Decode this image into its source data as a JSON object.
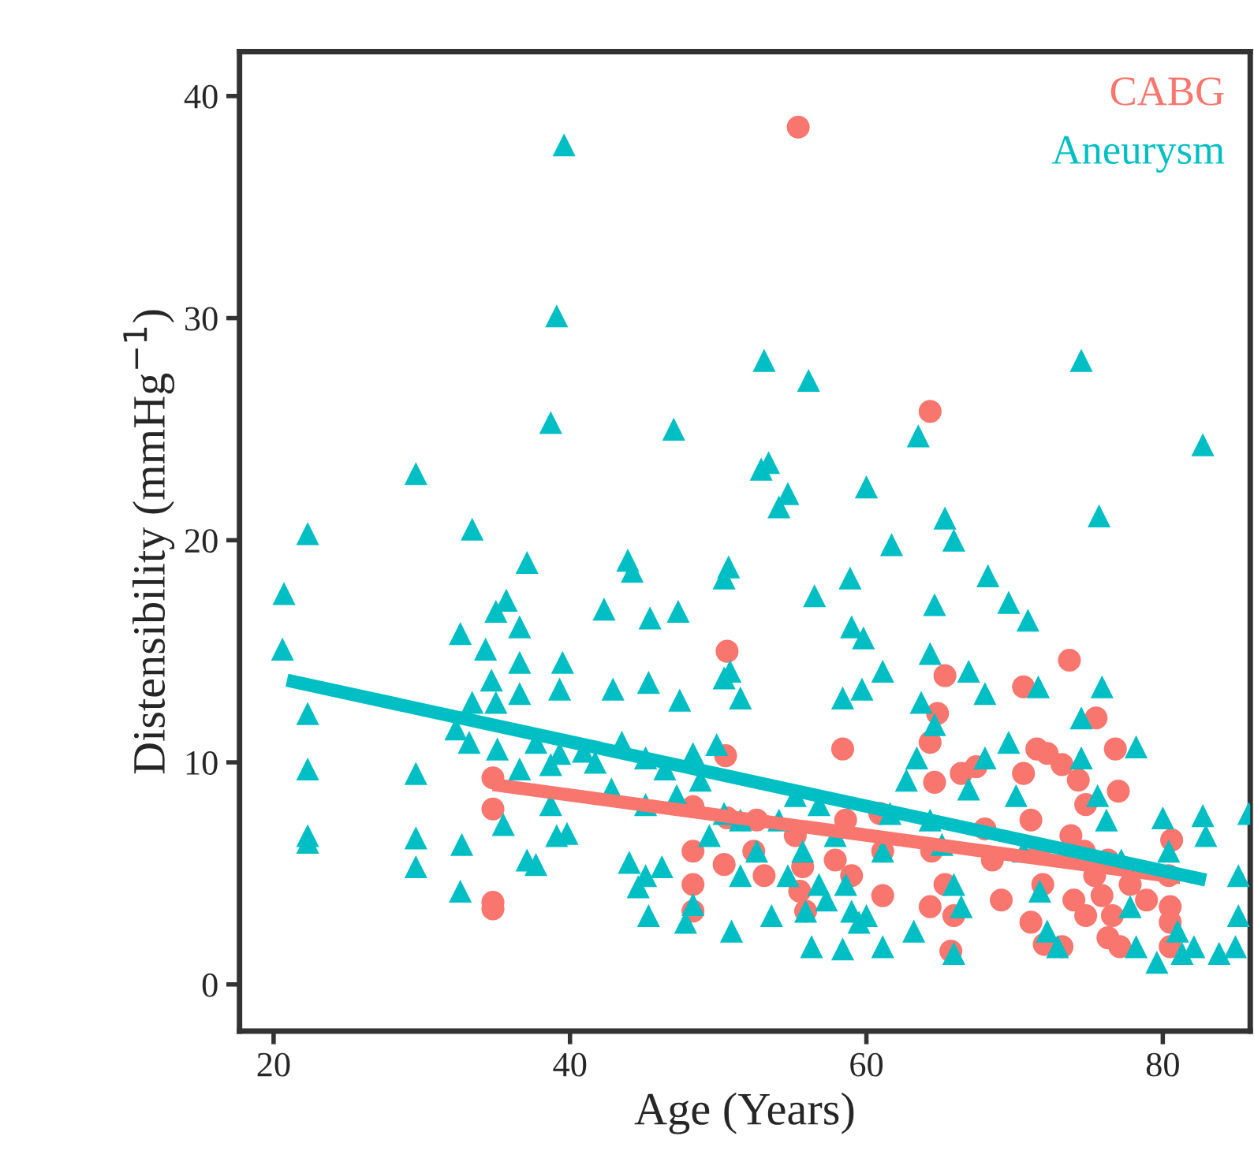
{
  "chart_data": {
    "type": "scatter",
    "xlabel": "Age (Years)",
    "ylabel": "Distensibility (mmHg$^{−1}$)",
    "xlim": [
      17.7,
      85.9
    ],
    "ylim": [
      -2.1,
      42.0
    ],
    "xticks": [
      20,
      40,
      60,
      80
    ],
    "yticks": [
      0,
      10,
      20,
      30,
      40
    ],
    "grid": false,
    "legend": "top right",
    "series": [
      {
        "name": "CABG",
        "color": "#f8766d",
        "marker": "circle",
        "x": [
          55.4,
          64.3,
          34.8,
          34.8,
          34.8,
          34.8,
          50.6,
          50.5,
          48.3,
          48.3,
          48.3,
          48.3,
          50.6,
          50.4,
          52.6,
          52.4,
          53.1,
          55.2,
          55.7,
          55.5,
          55.9,
          58.4,
          58.6,
          57.9,
          59.0,
          61.1,
          60.9,
          61.1,
          64.8,
          64.3,
          65.3,
          64.6,
          64.4,
          65.3,
          65.9,
          65.7,
          64.3,
          66.4,
          67.4,
          68.0,
          68.5,
          69.1,
          70.6,
          70.6,
          71.5,
          72.2,
          71.1,
          71.7,
          71.9,
          71.1,
          72.0,
          73.7,
          75.5,
          76.8,
          77.0,
          73.2,
          74.3,
          74.8,
          73.8,
          74.7,
          75.4,
          75.9,
          74.0,
          74.8,
          73.2,
          76.3,
          76.6,
          76.3,
          77.1,
          80.6,
          80.4,
          80.5,
          80.5,
          80.5,
          77.8,
          78.9
        ],
        "values": [
          38.6,
          25.8,
          9.3,
          7.9,
          3.7,
          3.4,
          15.0,
          10.3,
          6.0,
          4.5,
          3.3,
          8.0,
          7.5,
          5.4,
          7.4,
          6.0,
          4.9,
          6.7,
          5.3,
          4.2,
          3.3,
          10.6,
          7.4,
          5.6,
          4.9,
          6.0,
          7.7,
          4.0,
          12.2,
          10.9,
          13.9,
          9.1,
          6.0,
          4.5,
          3.1,
          1.5,
          3.5,
          9.5,
          9.8,
          7.0,
          5.6,
          3.8,
          13.4,
          9.5,
          10.6,
          10.4,
          7.4,
          6.0,
          4.5,
          2.8,
          1.8,
          14.6,
          12.0,
          10.6,
          8.7,
          9.9,
          9.2,
          8.1,
          6.7,
          6.0,
          4.9,
          4.0,
          3.8,
          3.1,
          1.7,
          5.6,
          3.1,
          2.1,
          1.7,
          6.5,
          4.9,
          3.5,
          2.8,
          1.7,
          4.5,
          3.8
        ]
      },
      {
        "name": "Aneurysm",
        "color": "#00bfc4",
        "marker": "triangle",
        "x": [
          20.7,
          20.6,
          22.3,
          22.3,
          22.3,
          22.3,
          22.3,
          29.6,
          29.6,
          29.6,
          29.6,
          33.4,
          32.6,
          32.6,
          32.7,
          39.6,
          39.1,
          38.7,
          47.0,
          53.1,
          53.4,
          52.9,
          54.7,
          54.1,
          56.1,
          60.0,
          63.5,
          65.3,
          65.9,
          61.7,
          56.5,
          58.9,
          68.2,
          69.6,
          74.5,
          75.7,
          82.7,
          75.9,
          70.9,
          64.6,
          64.3,
          50.7,
          50.4,
          43.9,
          44.2,
          47.3,
          45.4,
          42.3,
          37.1,
          35.7,
          35.0,
          36.6,
          39.5,
          34.3,
          34.7,
          36.6,
          35.0,
          36.6,
          33.4,
          39.3,
          42.9,
          45.3,
          47.4,
          50.4,
          50.8,
          51.5,
          59.8,
          59.0,
          61.1,
          58.4,
          59.7,
          63.7,
          66.9,
          68.0,
          64.6,
          71.6,
          74.5,
          78.2,
          80.0,
          82.7,
          85.8,
          82.9,
          33.2,
          35.1,
          37.7,
          39.3,
          40.9,
          32.3,
          36.6,
          38.7,
          41.7,
          43.5,
          45.1,
          46.4,
          48.3,
          49.9,
          42.8,
          45.1,
          47.2,
          48.8,
          50.4,
          38.7,
          39.8,
          37.1,
          39.1,
          35.5,
          37.7,
          44.0,
          45.1,
          46.2,
          44.6,
          45.3,
          48.3,
          47.8,
          50.9,
          51.5,
          52.6,
          54.1,
          55.2,
          56.8,
          57.9,
          54.7,
          55.9,
          56.3,
          58.6,
          59.0,
          59.5,
          60.0,
          58.4,
          61.1,
          61.6,
          62.7,
          63.4,
          64.3,
          65.1,
          65.9,
          66.4,
          65.9,
          66.9,
          68.0,
          69.6,
          70.1,
          70.6,
          71.7,
          72.2,
          72.9,
          74.5,
          75.6,
          76.2,
          77.2,
          77.8,
          78.2,
          80.4,
          81.0,
          81.3,
          82.1,
          83.8,
          84.9,
          85.1,
          85.1,
          79.6,
          61.1,
          63.2,
          57.3,
          53.6,
          49.4,
          51.5,
          55.7,
          56.8
        ],
        "values": [
          17.6,
          15.1,
          20.3,
          12.2,
          9.7,
          6.7,
          6.4,
          23.0,
          9.5,
          6.6,
          5.3,
          20.5,
          15.8,
          4.2,
          6.3,
          37.8,
          30.1,
          25.3,
          25.0,
          28.1,
          23.5,
          23.2,
          22.1,
          21.5,
          27.2,
          22.4,
          24.7,
          21.0,
          20.0,
          19.8,
          17.5,
          18.3,
          18.4,
          17.2,
          28.1,
          21.1,
          24.3,
          13.4,
          16.4,
          17.1,
          14.9,
          18.8,
          18.3,
          19.1,
          18.6,
          16.8,
          16.5,
          16.9,
          19.0,
          17.3,
          16.8,
          16.1,
          14.5,
          15.1,
          13.7,
          14.5,
          12.7,
          13.1,
          12.7,
          13.3,
          13.3,
          13.6,
          12.8,
          13.8,
          14.1,
          12.9,
          15.6,
          16.1,
          14.1,
          12.9,
          13.3,
          12.7,
          14.1,
          13.1,
          11.7,
          13.4,
          12.0,
          10.7,
          7.5,
          7.6,
          7.7,
          6.7,
          10.9,
          10.6,
          10.9,
          10.4,
          10.5,
          11.5,
          9.7,
          9.9,
          10.0,
          10.9,
          10.2,
          9.7,
          10.4,
          10.8,
          8.8,
          8.1,
          8.5,
          9.2,
          7.7,
          8.1,
          6.8,
          5.6,
          6.7,
          7.2,
          5.4,
          5.5,
          4.9,
          5.3,
          4.4,
          3.1,
          3.6,
          2.8,
          2.4,
          4.9,
          6.0,
          7.4,
          8.5,
          8.1,
          6.7,
          4.9,
          3.3,
          1.7,
          4.5,
          3.3,
          2.8,
          3.1,
          1.6,
          6.0,
          7.7,
          9.2,
          10.2,
          7.4,
          6.3,
          4.5,
          3.5,
          1.4,
          8.8,
          10.2,
          10.9,
          8.5,
          6.0,
          4.2,
          2.4,
          1.7,
          10.2,
          8.5,
          7.4,
          5.6,
          3.5,
          1.7,
          6.0,
          2.4,
          1.4,
          1.7,
          1.4,
          1.7,
          3.1,
          4.9,
          1.0,
          1.7,
          2.4,
          3.8,
          3.1,
          6.7,
          7.4,
          6.0,
          4.5
        ]
      },
      {
        "color": "#f8766d",
        "type": "line",
        "marker": "none",
        "line_style": "solid",
        "x": [
          34.8,
          81.2
        ],
        "values": [
          9.0,
          4.8
        ]
      },
      {
        "color": "#00bfc4",
        "type": "line",
        "marker": "none",
        "line_style": "solid",
        "x": [
          20.9,
          82.9
        ],
        "values": [
          13.7,
          4.7
        ]
      }
    ]
  }
}
